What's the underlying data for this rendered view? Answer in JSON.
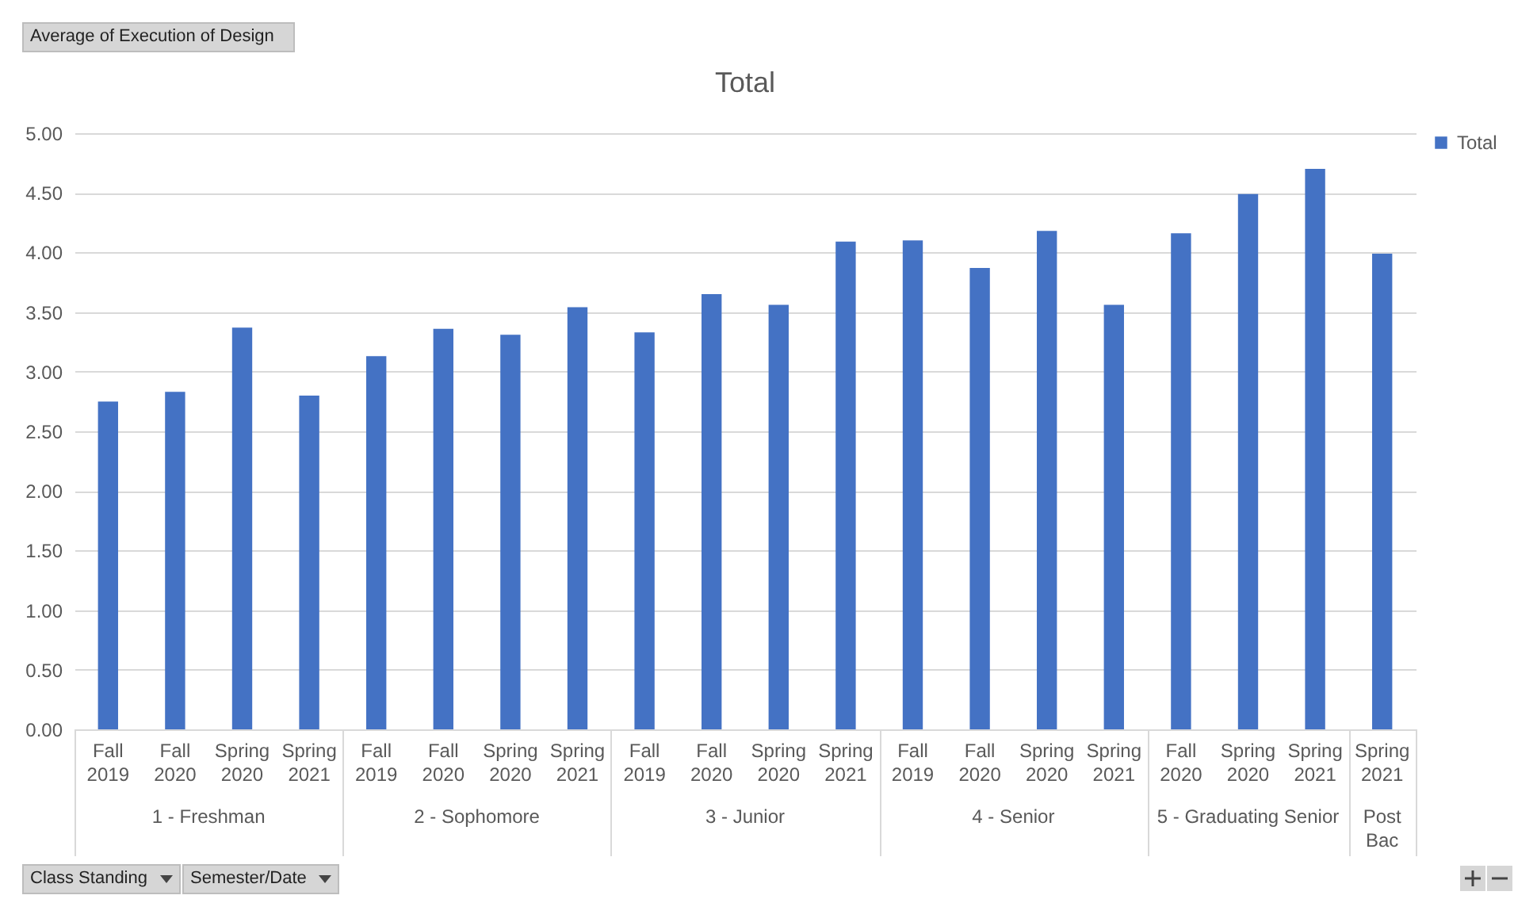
{
  "chart_data": {
    "type": "bar",
    "title": "Total",
    "categories": [
      "Fall 2019",
      "Fall 2020",
      "Spring 2020",
      "Spring 2021",
      "Fall 2019",
      "Fall 2020",
      "Spring 2020",
      "Spring 2021",
      "Fall 2019",
      "Fall 2020",
      "Spring 2020",
      "Spring 2021",
      "Fall 2019",
      "Fall 2020",
      "Spring 2020",
      "Spring 2021",
      "Fall 2020",
      "Spring 2020",
      "Spring 2021",
      "Spring 2021"
    ],
    "series": [
      {
        "name": "Total",
        "color": "#4472c4",
        "values": [
          2.75,
          2.83,
          3.37,
          2.8,
          3.13,
          3.36,
          3.31,
          3.54,
          3.33,
          3.65,
          3.56,
          4.09,
          4.1,
          3.87,
          4.18,
          3.56,
          4.16,
          4.49,
          4.7,
          3.99
        ]
      }
    ],
    "ylim": [
      0,
      5
    ],
    "yticks": [
      {
        "value": 0,
        "label": "0.00"
      },
      {
        "value": 0.5,
        "label": "0.50"
      },
      {
        "value": 1,
        "label": "1.00"
      },
      {
        "value": 1.5,
        "label": "1.50"
      },
      {
        "value": 2,
        "label": "2.00"
      },
      {
        "value": 2.5,
        "label": "2.50"
      },
      {
        "value": 3,
        "label": "3.00"
      },
      {
        "value": 3.5,
        "label": "3.50"
      },
      {
        "value": 4,
        "label": "4.00"
      },
      {
        "value": 4.5,
        "label": "4.50"
      },
      {
        "value": 5,
        "label": "5.00"
      }
    ],
    "grid": "y",
    "legend": "right",
    "annotations": [
      "Average of Execution of Design",
      "Class Standing",
      "Semester/Date",
      "1 - Freshman",
      "2 - Sophomore",
      "3 - Junior",
      "4 - Senior",
      "5 - Graduating Senior",
      "Post Bac"
    ]
  }
}
